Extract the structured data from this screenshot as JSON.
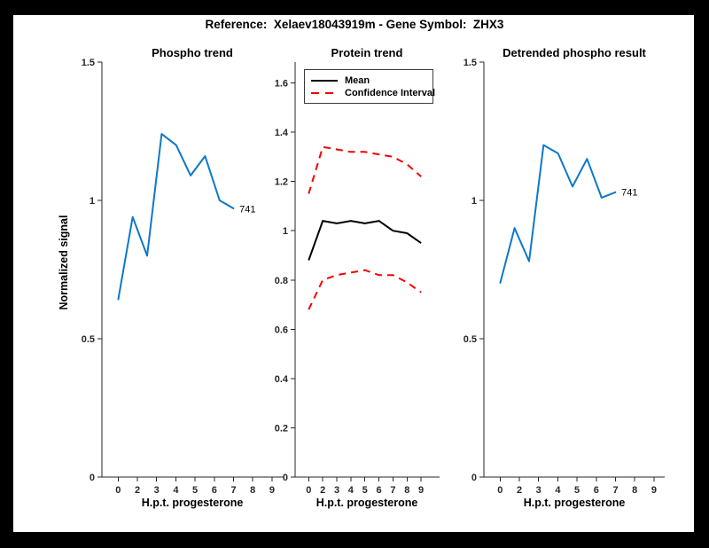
{
  "figure": {
    "title": "Reference:  Xelaev18043919m - Gene Symbol:  ZHX3",
    "frame_color": "#000000",
    "canvas_color": "#ffffff"
  },
  "colors": {
    "blue": "#0D78C8",
    "red": "#F40000",
    "black": "#000000",
    "axis": "#262626"
  },
  "legend": {
    "position": "top-left-of-middle-plot",
    "items": [
      {
        "label": "Mean",
        "color": "black",
        "dash": false
      },
      {
        "label": "Confidence Interval",
        "color": "red",
        "dash": true
      }
    ]
  },
  "chart_data": [
    {
      "type": "line",
      "title": "Phospho trend",
      "xlabel": "H.p.t. progesterone",
      "ylabel": "Normalized signal",
      "x_tick_labels": [
        "0",
        "2",
        "3",
        "4",
        "5",
        "6",
        "7",
        "8",
        "9"
      ],
      "y_ticks": [
        0,
        0.5,
        1,
        1.5
      ],
      "ylim": [
        0,
        1.5
      ],
      "grid": false,
      "series": [
        {
          "name": "phospho-signal",
          "color": "blue",
          "dash": false,
          "values": [
            0.64,
            0.94,
            0.8,
            1.24,
            1.2,
            1.09,
            1.16,
            1.0,
            0.97
          ],
          "end_label": "741"
        }
      ]
    },
    {
      "type": "line",
      "title": "Protein trend",
      "xlabel": "H.p.t. progesterone",
      "ylabel": "",
      "x_tick_labels": [
        "0",
        "2",
        "3",
        "4",
        "5",
        "6",
        "7",
        "8",
        "9"
      ],
      "y_ticks": [
        0,
        0.2,
        0.4,
        0.6,
        0.8,
        1,
        1.2,
        1.4,
        1.6
      ],
      "ylim": [
        0,
        1.65
      ],
      "grid": false,
      "legend_entries": [
        "Mean",
        "Confidence Interval"
      ],
      "series": [
        {
          "name": "protein-mean",
          "color": "black",
          "dash": false,
          "values": [
            0.88,
            1.04,
            1.03,
            1.04,
            1.03,
            1.04,
            1.0,
            0.99,
            0.95
          ]
        },
        {
          "name": "confidence-interval-upper",
          "color": "red",
          "dash": true,
          "values": [
            1.15,
            1.34,
            1.33,
            1.32,
            1.32,
            1.31,
            1.3,
            1.27,
            1.22
          ]
        },
        {
          "name": "confidence-interval-lower",
          "color": "red",
          "dash": true,
          "values": [
            0.68,
            0.8,
            0.82,
            0.83,
            0.84,
            0.82,
            0.82,
            0.79,
            0.75
          ]
        }
      ]
    },
    {
      "type": "line",
      "title": "Detrended phospho result",
      "xlabel": "H.p.t. progesterone",
      "ylabel": "",
      "x_tick_labels": [
        "0",
        "2",
        "3",
        "4",
        "5",
        "6",
        "7",
        "8",
        "9"
      ],
      "y_ticks": [
        0,
        0.5,
        1,
        1.5
      ],
      "ylim": [
        0,
        1.5
      ],
      "grid": false,
      "series": [
        {
          "name": "detrended-phospho",
          "color": "blue",
          "dash": false,
          "values": [
            0.7,
            0.9,
            0.78,
            1.2,
            1.17,
            1.05,
            1.15,
            1.01,
            1.03
          ],
          "end_label": "741"
        }
      ]
    }
  ]
}
